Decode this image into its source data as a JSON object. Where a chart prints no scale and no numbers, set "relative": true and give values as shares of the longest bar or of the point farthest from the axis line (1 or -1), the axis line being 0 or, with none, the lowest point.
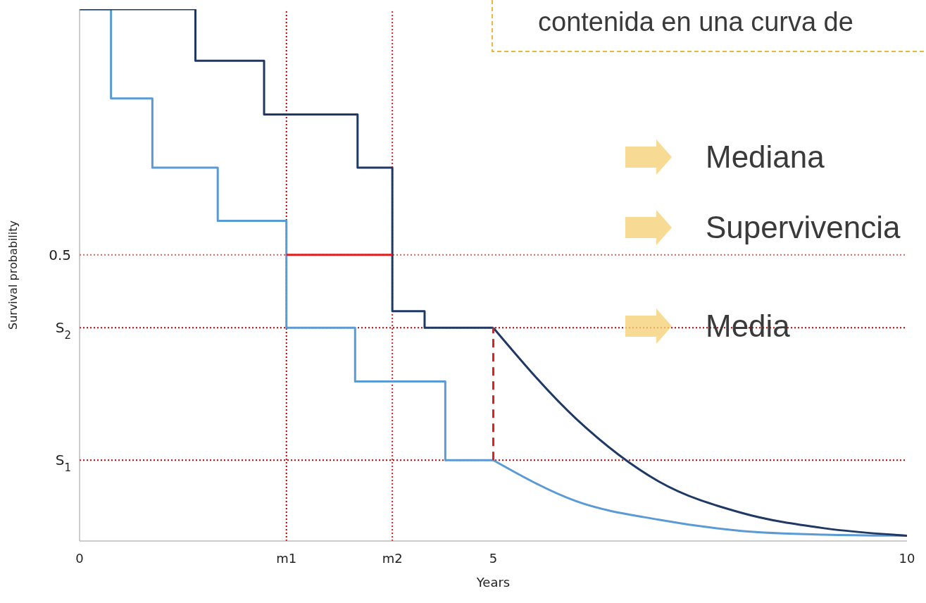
{
  "chart_data": {
    "type": "line",
    "relative": true,
    "xlabel": "Years",
    "ylabel": "Survival probability",
    "annotations": [
      "contenida en una curva de",
      "Mediana",
      "Supervivencia",
      "Media"
    ],
    "xlim": [
      0,
      10
    ],
    "xticks": [
      0,
      {
        "value": 2.5,
        "label": "m1"
      },
      {
        "value": 3.78,
        "label": "m2"
      },
      5,
      10
    ],
    "grid": false,
    "legend": false,
    "marker": "none",
    "series": [
      {
        "type": "step",
        "color": "#5b9bd5",
        "x": [
          0,
          0.38,
          0.88,
          1.67,
          2.5,
          3.33,
          4.42,
          5
        ],
        "values": [
          1,
          0.832,
          0.702,
          0.602,
          0.401,
          0.3,
          0.152,
          0.152
        ]
      },
      {
        "type": "step",
        "color": "#1f3864",
        "x": [
          0,
          1.4,
          2.23,
          3.36,
          3.78,
          4.17,
          5
        ],
        "values": [
          1,
          0.903,
          0.802,
          0.702,
          0.432,
          0.401,
          0.401
        ]
      },
      {
        "color": "#5b9bd5",
        "x": [
          5,
          6,
          7,
          8,
          9,
          10
        ],
        "values": [
          0.152,
          0.075,
          0.04,
          0.019,
          0.012,
          0.01
        ]
      },
      {
        "color": "#1f3864",
        "x": [
          5,
          6,
          7,
          8,
          9,
          10
        ],
        "values": [
          0.401,
          0.23,
          0.112,
          0.053,
          0.024,
          0.01
        ]
      },
      {
        "color": "#e02020",
        "x": [
          2.5,
          3.78
        ],
        "values": [
          0.538,
          0.538
        ]
      },
      {
        "color": "#e02020",
        "line_style": "dashed",
        "x": [
          5,
          5
        ],
        "values": [
          0.152,
          0.401
        ]
      }
    ],
    "ref_lines": [
      {
        "axis": "y",
        "value": 0.538,
        "label": "0.5",
        "color": "#e06060",
        "line_style": "dotted"
      },
      {
        "axis": "y",
        "value": 0.401,
        "label": "S$_{2}$",
        "color": "#c00000",
        "line_style": "dotted"
      },
      {
        "axis": "y",
        "value": 0.152,
        "label": "S$_{1}$",
        "color": "#c00000",
        "line_style": "dotted"
      },
      {
        "axis": "x",
        "value": 2.5,
        "color": "#c00000",
        "line_style": "dotted"
      },
      {
        "axis": "x",
        "value": 3.78,
        "color": "#e02020",
        "line_style": "dotted"
      }
    ]
  }
}
